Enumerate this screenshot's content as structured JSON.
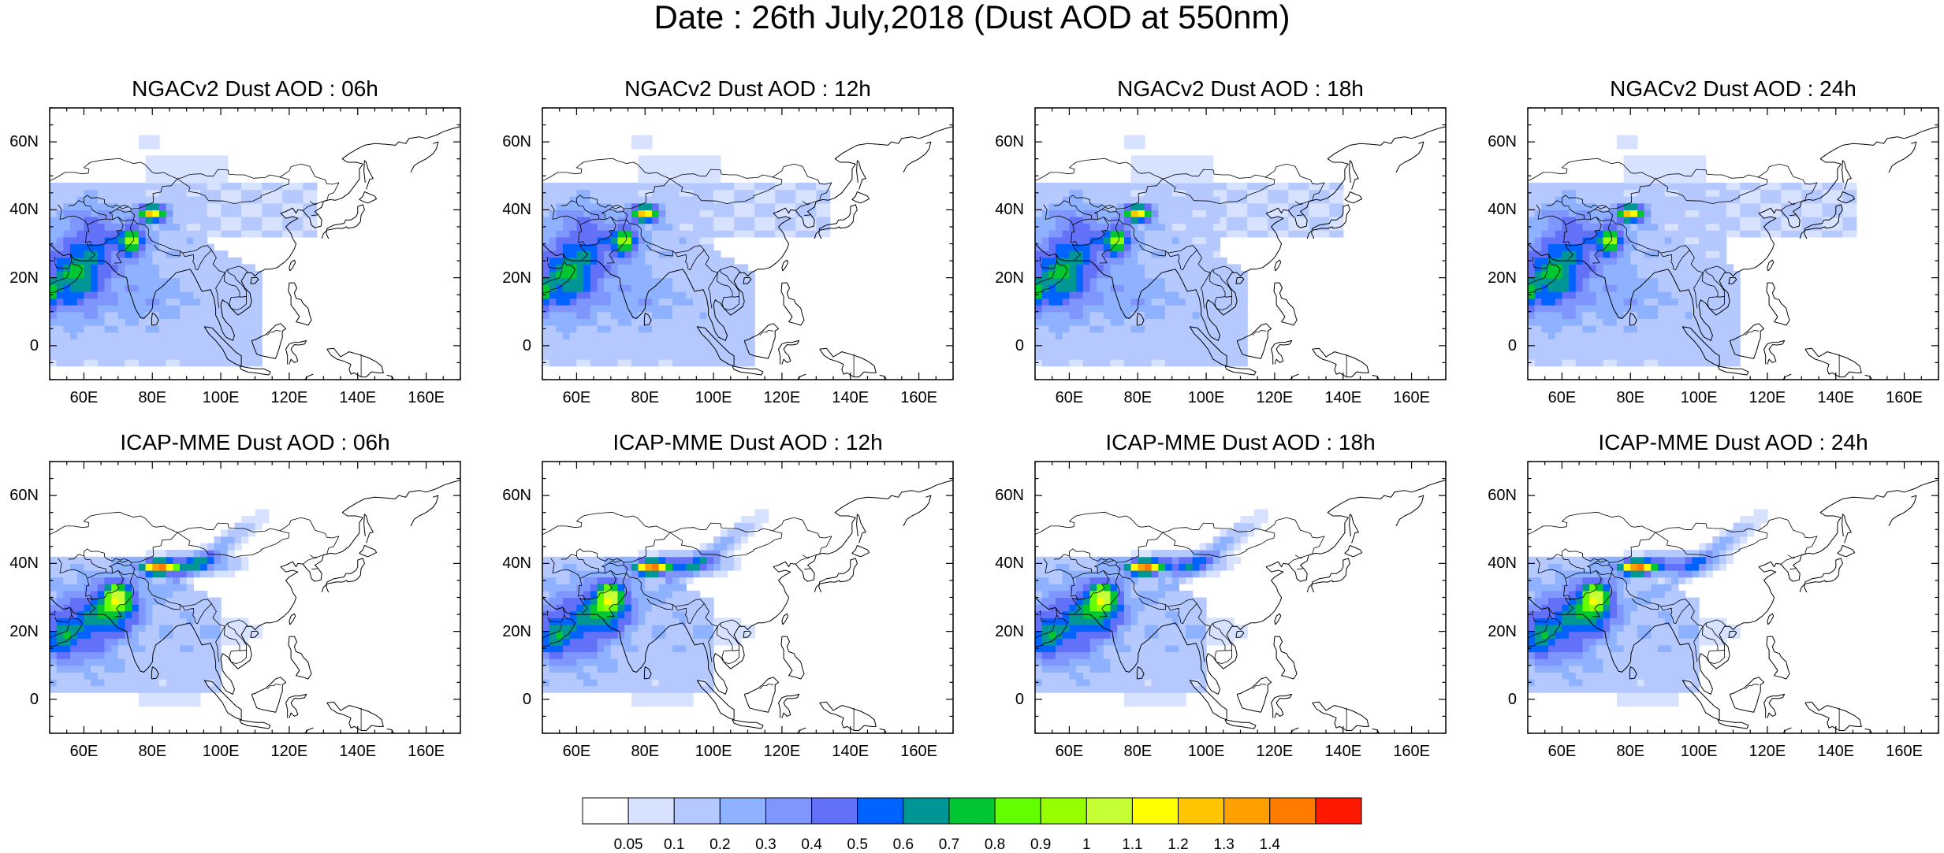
{
  "title": "Date : 26th July,2018 (Dust AOD at 550nm)",
  "panels": [
    {
      "title": "NGACv2 Dust AOD : 06h",
      "model": "ngac",
      "t": 0
    },
    {
      "title": "NGACv2 Dust AOD : 12h",
      "model": "ngac",
      "t": 1
    },
    {
      "title": "NGACv2 Dust AOD : 18h",
      "model": "ngac",
      "t": 2
    },
    {
      "title": "NGACv2 Dust AOD : 24h",
      "model": "ngac",
      "t": 3
    },
    {
      "title": "ICAP-MME Dust AOD : 06h",
      "model": "icap",
      "t": 0
    },
    {
      "title": "ICAP-MME Dust AOD : 12h",
      "model": "icap",
      "t": 1
    },
    {
      "title": "ICAP-MME Dust AOD : 18h",
      "model": "icap",
      "t": 2
    },
    {
      "title": "ICAP-MME Dust AOD : 24h",
      "model": "icap",
      "t": 3
    }
  ],
  "map": {
    "lon_range": [
      50,
      170
    ],
    "lat_range": [
      -10,
      70
    ],
    "x_ticks": [
      "60E",
      "80E",
      "100E",
      "120E",
      "140E",
      "160E"
    ],
    "x_tick_values": [
      60,
      80,
      100,
      120,
      140,
      160
    ],
    "y_ticks": [
      "60N",
      "40N",
      "20N",
      "0"
    ],
    "y_tick_values": [
      60,
      40,
      20,
      0
    ]
  },
  "colorbar": {
    "labels": [
      "0.05",
      "0.1",
      "0.2",
      "0.3",
      "0.4",
      "0.5",
      "0.6",
      "0.7",
      "0.8",
      "0.9",
      "1",
      "1.1",
      "1.2",
      "1.3",
      "1.4"
    ],
    "colors": [
      "#ffffff",
      "#d6e2ff",
      "#b5c9ff",
      "#8eb2ff",
      "#7f96ff",
      "#6370f8",
      "#0062ff",
      "#009696",
      "#00c633",
      "#63ff00",
      "#96ff00",
      "#c6ff33",
      "#ffff00",
      "#ffc600",
      "#ffa000",
      "#ff7c00",
      "#ff1900"
    ]
  }
}
